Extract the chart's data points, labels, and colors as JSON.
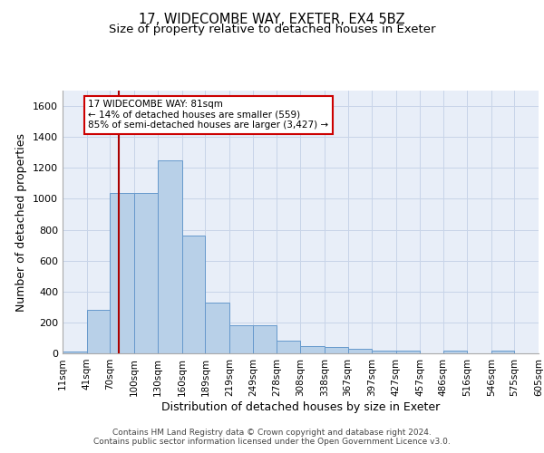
{
  "title_line1": "17, WIDECOMBE WAY, EXETER, EX4 5BZ",
  "title_line2": "Size of property relative to detached houses in Exeter",
  "xlabel": "Distribution of detached houses by size in Exeter",
  "ylabel": "Number of detached properties",
  "bar_values": [
    10,
    280,
    1035,
    1035,
    1250,
    760,
    330,
    180,
    180,
    80,
    45,
    40,
    30,
    20,
    15,
    0,
    15,
    0,
    15,
    0
  ],
  "bin_edges": [
    11,
    41,
    70,
    100,
    130,
    160,
    189,
    219,
    249,
    278,
    308,
    338,
    367,
    397,
    427,
    457,
    486,
    516,
    546,
    575,
    605
  ],
  "bin_labels": [
    "11sqm",
    "41sqm",
    "70sqm",
    "100sqm",
    "130sqm",
    "160sqm",
    "189sqm",
    "219sqm",
    "249sqm",
    "278sqm",
    "308sqm",
    "338sqm",
    "367sqm",
    "397sqm",
    "427sqm",
    "457sqm",
    "486sqm",
    "516sqm",
    "546sqm",
    "575sqm",
    "605sqm"
  ],
  "bar_color": "#b8d0e8",
  "bar_edge_color": "#6699cc",
  "vline_x": 81,
  "vline_color": "#aa0000",
  "annotation_text": "17 WIDECOMBE WAY: 81sqm\n← 14% of detached houses are smaller (559)\n85% of semi-detached houses are larger (3,427) →",
  "annotation_box_color": "#cc0000",
  "ylim": [
    0,
    1700
  ],
  "yticks": [
    0,
    200,
    400,
    600,
    800,
    1000,
    1200,
    1400,
    1600
  ],
  "grid_color": "#c8d4e8",
  "bg_color": "#e8eef8",
  "footer_line1": "Contains HM Land Registry data © Crown copyright and database right 2024.",
  "footer_line2": "Contains public sector information licensed under the Open Government Licence v3.0.",
  "title_fontsize": 10.5,
  "subtitle_fontsize": 9.5,
  "axis_label_fontsize": 9,
  "tick_fontsize": 7.5,
  "annotation_fontsize": 7.5,
  "footer_fontsize": 6.5
}
